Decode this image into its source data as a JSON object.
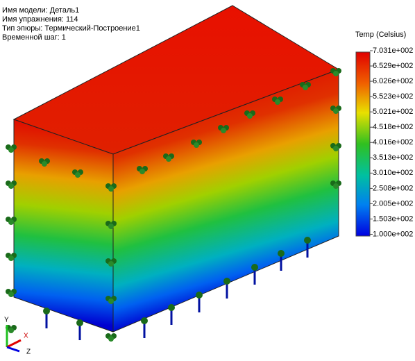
{
  "info": [
    "Имя модели: Деталь1",
    "Имя упражнения: 114",
    "Тип эпюры: Термический-Построение1",
    "Временной шаг: 1"
  ],
  "legend": {
    "title": "Temp (Celsius)",
    "labels": [
      "7.031e+002",
      "6.529e+002",
      "6.026e+002",
      "5.523e+002",
      "5.021e+002",
      "4.518e+002",
      "4.016e+002",
      "3.513e+002",
      "3.010e+002",
      "2.508e+002",
      "2.005e+002",
      "1.503e+002",
      "1.000e+002"
    ]
  },
  "triad": {
    "x": "X",
    "y": "Y",
    "z": "Z"
  }
}
